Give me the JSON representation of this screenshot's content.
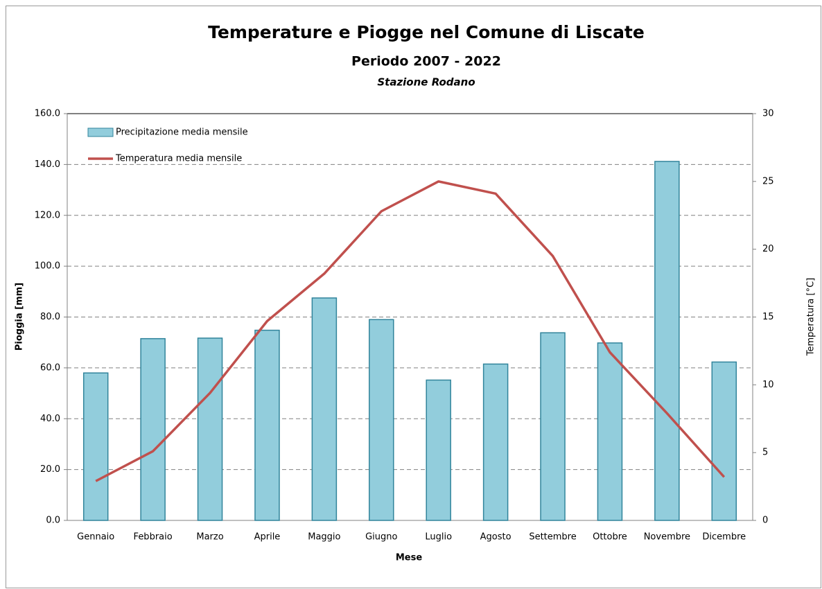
{
  "chart_data": {
    "type": "bar_line",
    "title": "Temperature e Piogge nel Comune di Liscate",
    "subtitle": "Periodo 2007 - 2022",
    "station": "Stazione Rodano",
    "xlabel": "Mese",
    "ylabel": "Pioggia [mm]",
    "y2label": "Temperatura [°C]",
    "categories": [
      "Gennaio",
      "Febbraio",
      "Marzo",
      "Aprile",
      "Maggio",
      "Giugno",
      "Luglio",
      "Agosto",
      "Settembre",
      "Ottobre",
      "Novembre",
      "Dicembre"
    ],
    "series": [
      {
        "name": "Precipitazione media mensile",
        "type": "bar",
        "color": "#92cddc",
        "stroke": "#31849b",
        "axis": "y",
        "values": [
          58.0,
          71.5,
          71.7,
          74.8,
          87.5,
          79.0,
          55.2,
          61.5,
          73.8,
          69.8,
          141.2,
          62.3
        ]
      },
      {
        "name": "Temperatura media mensile",
        "type": "line",
        "color": "#c0504d",
        "axis": "y2",
        "values": [
          2.9,
          5.1,
          9.4,
          14.7,
          18.2,
          22.8,
          25.0,
          24.1,
          19.5,
          12.4,
          7.9,
          3.2
        ]
      }
    ],
    "ylim": [
      0,
      160
    ],
    "yticks": [
      {
        "value": 0,
        "label": "0.0"
      },
      {
        "value": 20,
        "label": "20.0"
      },
      {
        "value": 40,
        "label": "40.0"
      },
      {
        "value": 60,
        "label": "60.0"
      },
      {
        "value": 80,
        "label": "80.0"
      },
      {
        "value": 100,
        "label": "100.0"
      },
      {
        "value": 120,
        "label": "120.0"
      },
      {
        "value": 140,
        "label": "140.0"
      },
      {
        "value": 160,
        "label": "160.0"
      }
    ],
    "y2lim": [
      0,
      30
    ],
    "y2ticks": [
      0,
      5,
      10,
      15,
      20,
      25,
      30
    ],
    "grid": true,
    "legend": "upper-left"
  }
}
